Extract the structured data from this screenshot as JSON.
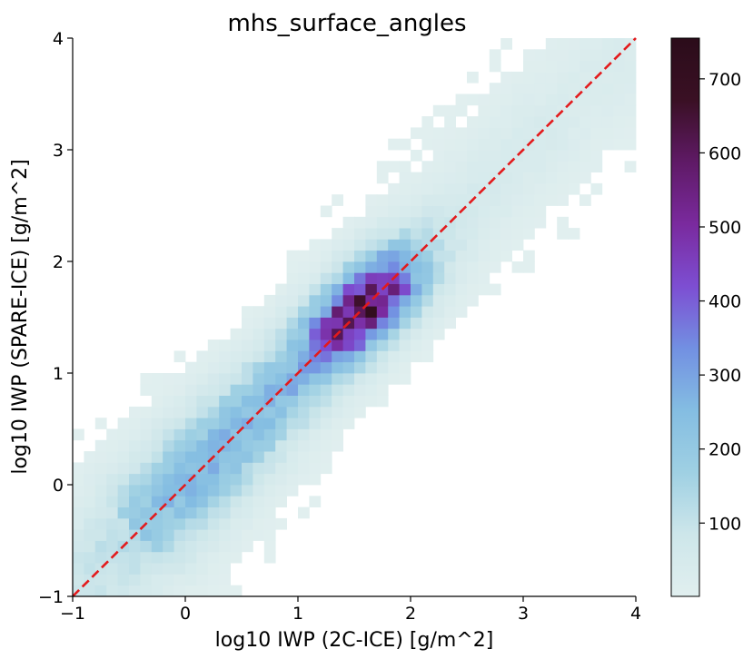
{
  "chart_data": {
    "type": "heatmap",
    "title": "mhs_surface_angles",
    "xlabel": "log10 IWP (2C-ICE) [g/m^2]",
    "ylabel": "log10 IWP (SPARE-ICE) [g/m^2]",
    "xlim": [
      -1,
      4
    ],
    "ylim": [
      -1,
      4
    ],
    "x_ticks": [
      "−1",
      "0",
      "1",
      "2",
      "3",
      "4"
    ],
    "y_ticks": [
      "−1",
      "0",
      "1",
      "2",
      "3",
      "4"
    ],
    "x_tick_values": [
      -1,
      0,
      1,
      2,
      3,
      4
    ],
    "y_tick_values": [
      -1,
      0,
      1,
      2,
      3,
      4
    ],
    "bins": 50,
    "reference_line": {
      "style": "dashed",
      "color": "#e31a1c",
      "from": [
        -1,
        -1
      ],
      "to": [
        4,
        4
      ]
    },
    "colorbar": {
      "min": 1,
      "max": 755,
      "ticks": [
        "100",
        "200",
        "300",
        "400",
        "500",
        "600",
        "700"
      ],
      "tick_values": [
        100,
        200,
        300,
        400,
        500,
        600,
        700
      ],
      "colormap": [
        "#e1efef",
        "#cde6ea",
        "#9fd0e3",
        "#84bde2",
        "#7290e2",
        "#7d4ed2",
        "#7a2a9e",
        "#5f1a66",
        "#3a1024",
        "#2b0c1a"
      ]
    },
    "grid": false,
    "axes_spines": "left-bottom"
  }
}
